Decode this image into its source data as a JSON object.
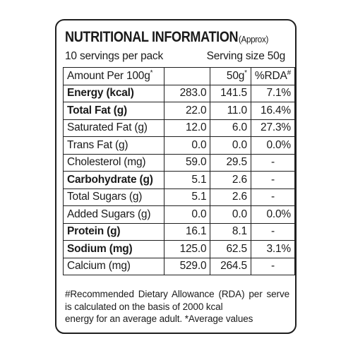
{
  "title": "NUTRITIONAL INFORMATION",
  "title_suffix": "(Approx)",
  "servings_per_pack": "10 servings per pack",
  "serving_size": "Serving size 50g",
  "header": {
    "amount_label": "Amount Per 100g*",
    "serving_label": "50g*",
    "rda_label": "%RDA#"
  },
  "rows": [
    {
      "name": "Energy (kcal)",
      "per100": "283.0",
      "per50": "141.5",
      "rda": "7.1%",
      "bold": true
    },
    {
      "name": "Total Fat (g)",
      "per100": "22.0",
      "per50": "11.0",
      "rda": "16.4%",
      "bold": true
    },
    {
      "name": "Saturated Fat (g)",
      "per100": "12.0",
      "per50": "6.0",
      "rda": "27.3%",
      "bold": false
    },
    {
      "name": "Trans Fat (g)",
      "per100": "0.0",
      "per50": "0.0",
      "rda": "0.0%",
      "bold": false
    },
    {
      "name": "Cholesterol (mg)",
      "per100": "59.0",
      "per50": "29.5",
      "rda": "-",
      "bold": false
    },
    {
      "name": "Carbohydrate (g)",
      "per100": "5.1",
      "per50": "2.6",
      "rda": "-",
      "bold": true
    },
    {
      "name": "Total Sugars (g)",
      "per100": "5.1",
      "per50": "2.6",
      "rda": "-",
      "bold": false
    },
    {
      "name": "Added Sugars (g)",
      "per100": "0.0",
      "per50": "0.0",
      "rda": "0.0%",
      "bold": false
    },
    {
      "name": "Protein (g)",
      "per100": "16.1",
      "per50": "8.1",
      "rda": "-",
      "bold": true
    },
    {
      "name": "Sodium (mg)",
      "per100": "125.0",
      "per50": "62.5",
      "rda": "3.1%",
      "bold": true
    },
    {
      "name": "Calcium (mg)",
      "per100": "529.0",
      "per50": "264.5",
      "rda": "-",
      "bold": false
    }
  ],
  "footnote_line1": "#Recommended Dietary Allowance (RDA) per serve is calculated on the basis of 2000 kcal",
  "footnote_line2": "energy for an average adult.  *Average values"
}
